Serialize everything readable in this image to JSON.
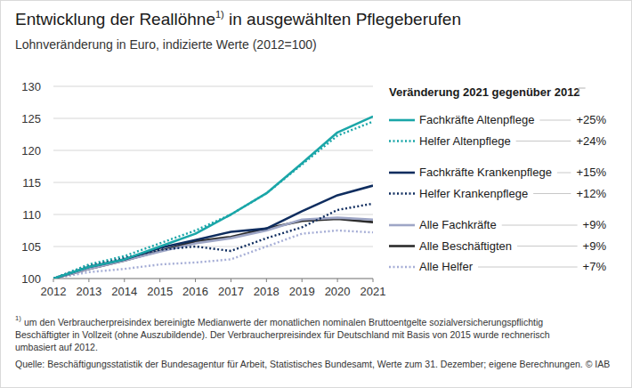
{
  "chart_data": {
    "type": "line",
    "title": "Entwicklung der Reallöhne",
    "title_mark": "1)",
    "title_rest": " in ausgewählten Pflegeberufen",
    "subtitle": "Lohnveränderung in Euro, indizierte Werte (2012=100)",
    "legend_title": "Veränderung 2021 gegenüber 2012",
    "legend": "right",
    "grid": true,
    "x": [
      2012,
      2013,
      2014,
      2015,
      2016,
      2017,
      2018,
      2019,
      2020,
      2021
    ],
    "xlim": [
      2012,
      2021
    ],
    "xticks": [
      2012,
      2013,
      2014,
      2015,
      2016,
      2017,
      2018,
      2019,
      2020,
      2021
    ],
    "ylim": [
      100,
      130
    ],
    "yticks": [
      100,
      105,
      110,
      115,
      120,
      125,
      130
    ],
    "series": [
      {
        "name": "Fachkräfte Altenpflege",
        "change": "+25%",
        "color": "#1aa6a8",
        "line_style": "solid",
        "values": [
          100,
          101.8,
          103,
          105,
          107,
          110,
          113.3,
          118,
          122.8,
          125.3
        ]
      },
      {
        "name": "Helfer Altenpflege",
        "change": "+24%",
        "color": "#1aa6a8",
        "line_style": "dotted",
        "values": [
          100,
          102.2,
          103.5,
          105.5,
          107.5,
          110,
          113.3,
          117.8,
          122.3,
          124.5
        ]
      },
      {
        "name": "Fachkräfte Krankenpflege",
        "change": "+15%",
        "color": "#0f2d5f",
        "line_style": "solid",
        "values": [
          100,
          101.8,
          103,
          104.8,
          106,
          107.3,
          107.8,
          110.5,
          113,
          114.5
        ]
      },
      {
        "name": "Helfer Krankenpflege",
        "change": "+12%",
        "color": "#0f2d5f",
        "line_style": "dotted",
        "values": [
          100,
          102,
          103.2,
          104.5,
          105,
          104.3,
          106.3,
          108,
          110.7,
          111.7
        ]
      },
      {
        "name": "Alle Fachkräfte",
        "change": "+9%",
        "color": "#9ea6c6",
        "line_style": "solid",
        "values": [
          100,
          101.5,
          102.8,
          104.2,
          105.5,
          106.3,
          107.5,
          109.2,
          109.5,
          109.2
        ]
      },
      {
        "name": "Alle Beschäftigten",
        "change": "+9%",
        "color": "#2b2b2b",
        "line_style": "solid",
        "values": [
          100,
          101.5,
          102.8,
          104.3,
          105.8,
          106.5,
          107.8,
          109,
          109.3,
          108.8
        ]
      },
      {
        "name": "Alle Helfer",
        "change": "+7%",
        "color": "#a6aed6",
        "line_style": "dotted",
        "values": [
          100,
          101,
          101.5,
          102.2,
          102.5,
          103,
          105,
          107,
          107.5,
          107.2
        ]
      }
    ],
    "footnote_mark": "1)",
    "footnote": [
      "um den Verbraucherpreisindex bereinigte Medianwerte der monatlichen nominalen Bruttoentgelte sozialversicherungspflichtig",
      "Beschäftigter in Vollzeit (ohne Auszubildende). Der Verbraucherpreisindex für Deutschland mit Basis von 2015 wurde rechnerisch",
      "umbasiert auf 2012."
    ],
    "source": "Quelle: Beschäftigungsstatistik der Bundesagentur für Arbeit, Statistisches Bundesamt, Werte zum 31. Dezember; eigene Berechnungen. © IAB"
  }
}
